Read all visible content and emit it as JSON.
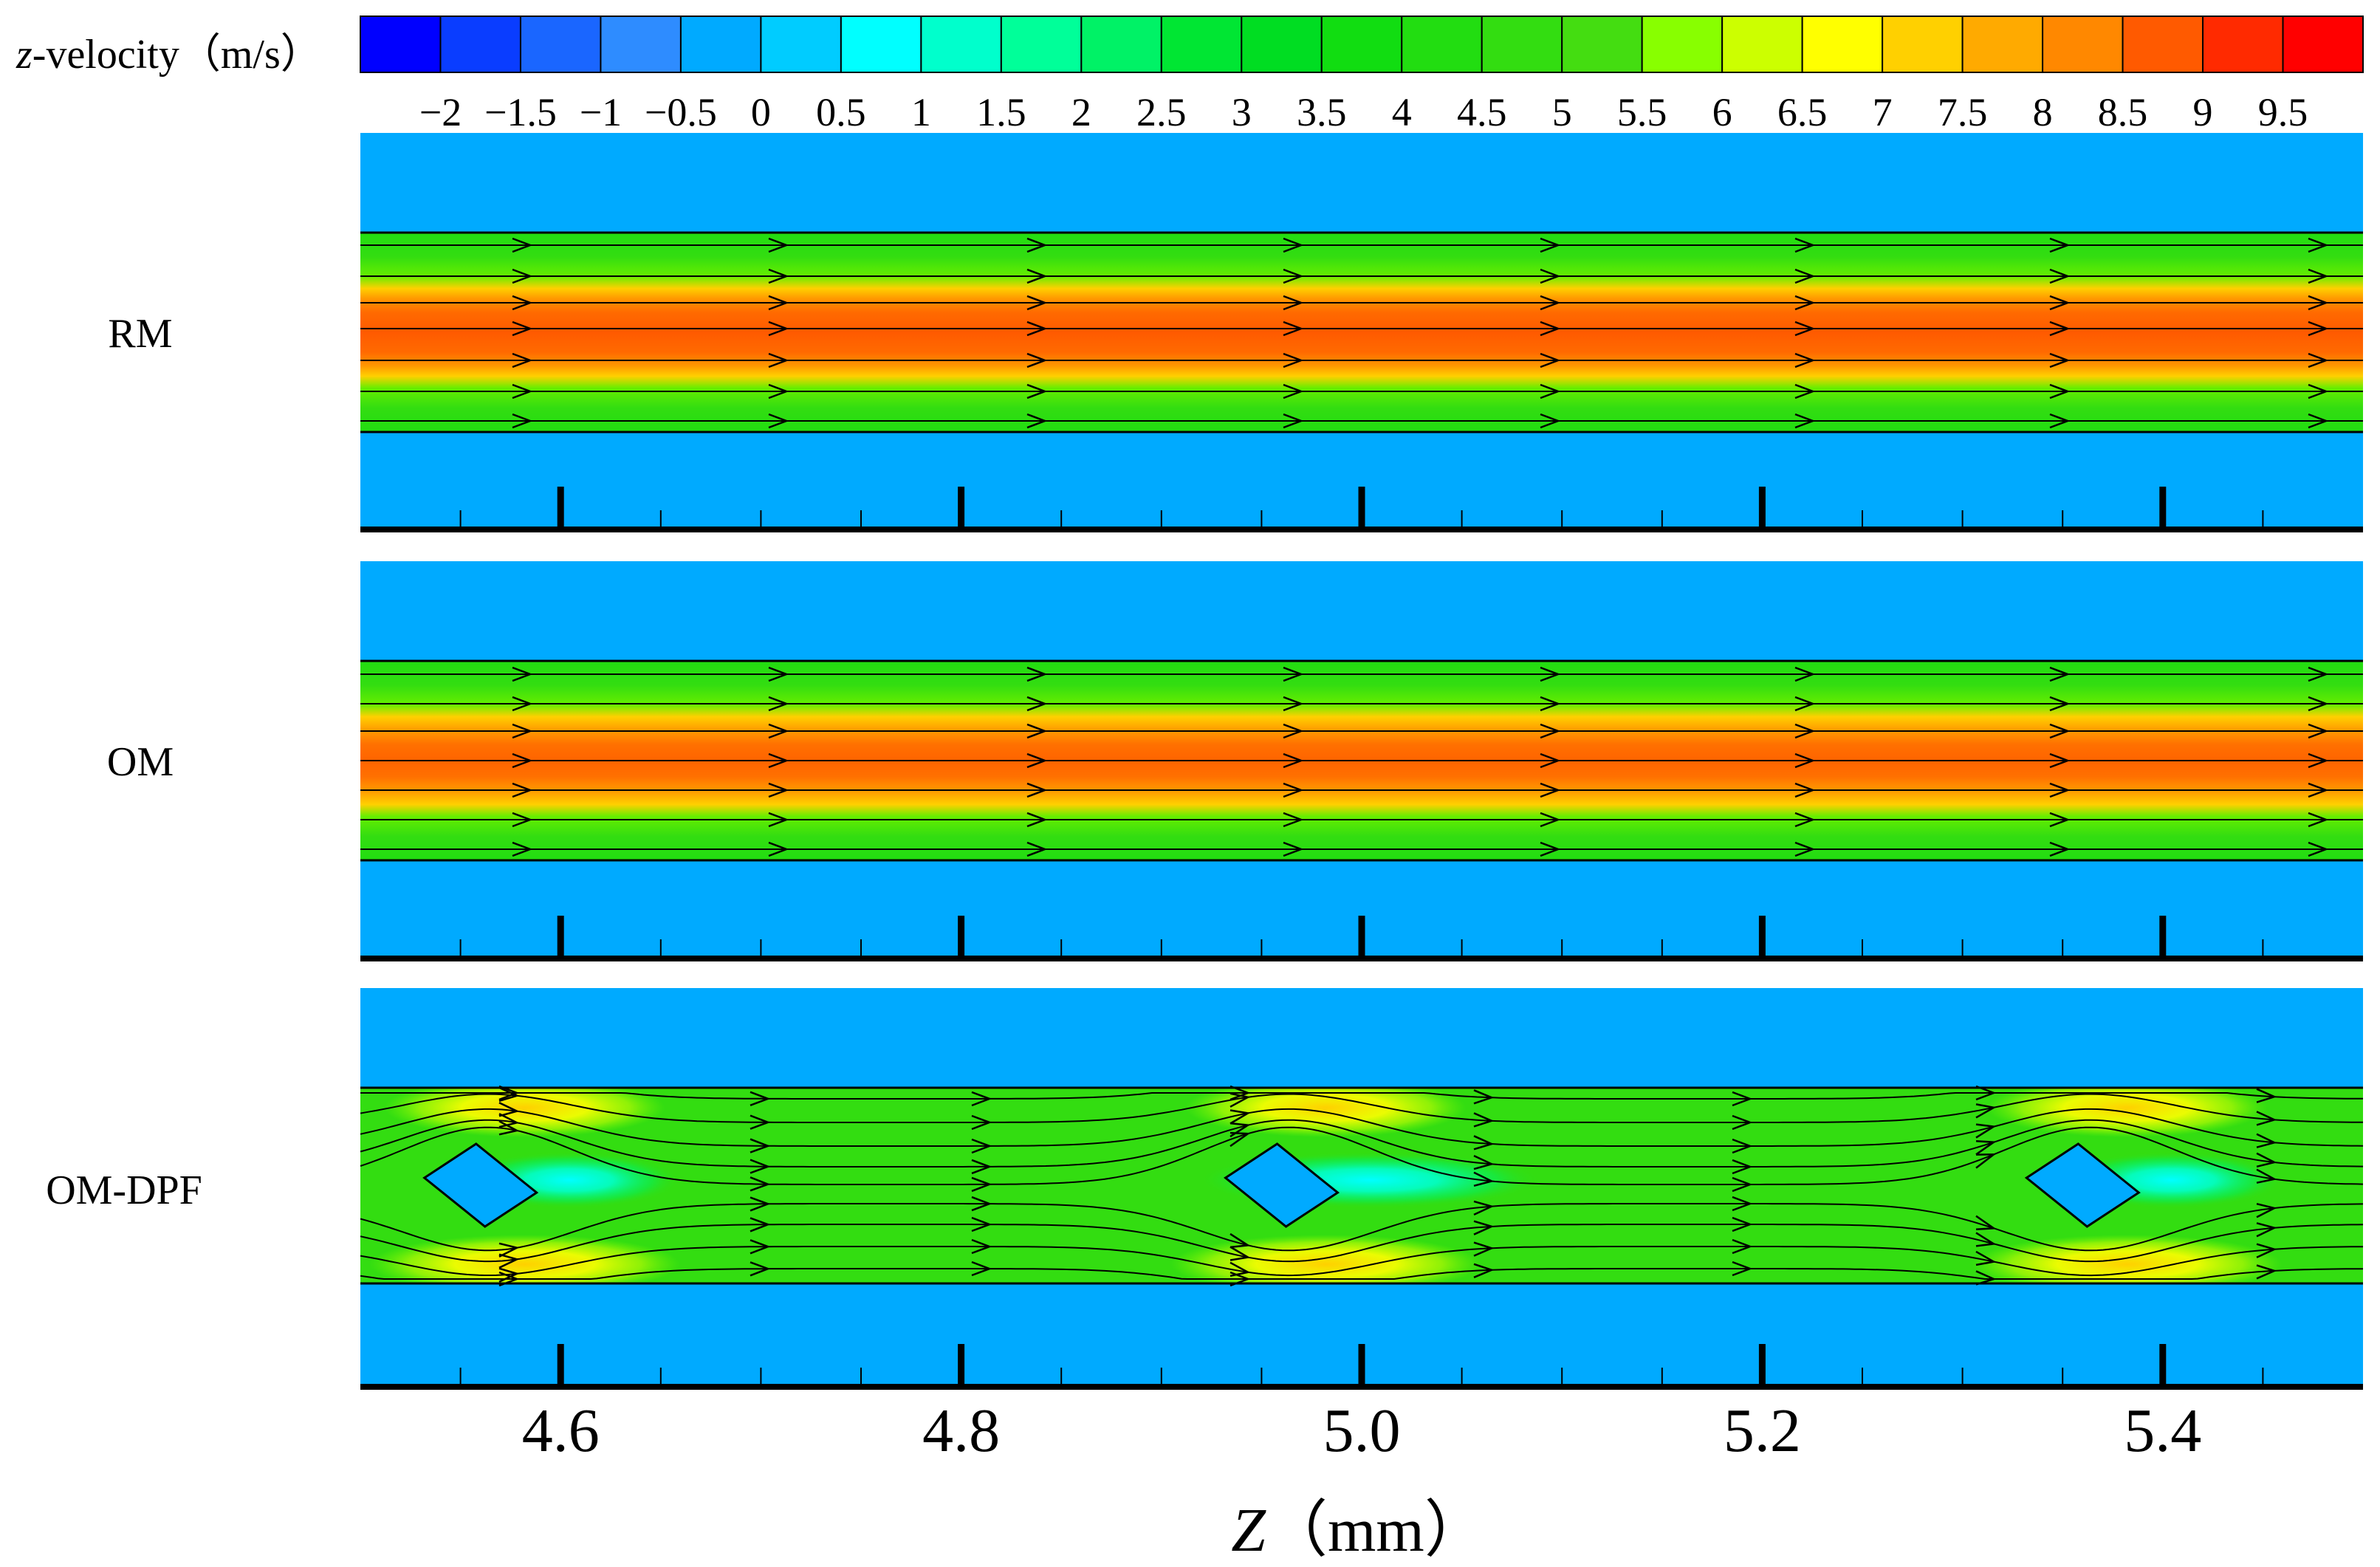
{
  "chart_data": {
    "type": "heatmap",
    "colorbar": {
      "title_var": "z",
      "title_rest": "-velocity（m/s）",
      "ticks": [
        "−2",
        "−1.5",
        "−1",
        "−0.5",
        "0",
        "0.5",
        "1",
        "1.5",
        "2",
        "2.5",
        "3",
        "3.5",
        "4",
        "4.5",
        "5",
        "5.5",
        "6",
        "6.5",
        "7",
        "7.5",
        "8",
        "8.5",
        "9",
        "9.5"
      ],
      "levels": [
        -2,
        -1.5,
        -1,
        -0.5,
        0,
        0.5,
        1,
        1.5,
        2,
        2.5,
        3,
        3.5,
        4,
        4.5,
        5,
        5.5,
        6,
        6.5,
        7,
        7.5,
        8,
        8.5,
        9,
        9.5
      ],
      "colors": [
        "#0000ff",
        "#0a3dff",
        "#1a66ff",
        "#2e8cff",
        "#00aaff",
        "#00ccff",
        "#00ffff",
        "#00ffcc",
        "#00ff99",
        "#00f266",
        "#00e633",
        "#00dd22",
        "#11dd11",
        "#22dd11",
        "#33dd11",
        "#44dd11",
        "#88ff00",
        "#ccff00",
        "#ffff00",
        "#ffd000",
        "#ffaa00",
        "#ff8800",
        "#ff5a00",
        "#ff2a00",
        "#ff0000"
      ]
    },
    "xaxis": {
      "label_var": "Z",
      "label_rest": "（mm）",
      "range": [
        4.5,
        5.5
      ],
      "major_ticks": [
        4.6,
        4.8,
        5.0,
        5.2,
        5.4
      ],
      "tick_labels": [
        "4.6",
        "4.8",
        "5.0",
        "5.2",
        "5.4"
      ],
      "minor_step": 0.05
    },
    "panels": [
      {
        "label": "RM",
        "core_velocity": 8.6,
        "wall_velocity": 0,
        "obstacles": []
      },
      {
        "label": "OM",
        "core_velocity": 8.4,
        "wall_velocity": 0,
        "obstacles": []
      },
      {
        "label": "OM-DPF",
        "core_velocity": 4.2,
        "wall_velocity": 0,
        "obstacles": [
          4.56,
          4.96,
          5.36
        ]
      }
    ]
  }
}
